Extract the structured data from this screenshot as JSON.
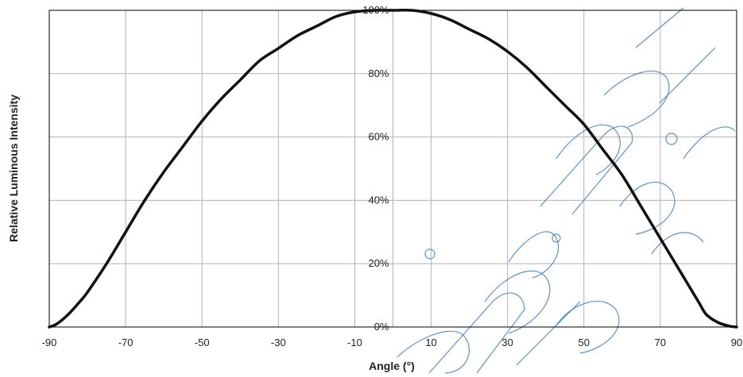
{
  "chart_data": {
    "type": "line",
    "title": "",
    "xlabel": "Angle (°)",
    "ylabel": "Relative Luminous Intensity",
    "xlim": [
      -90,
      90
    ],
    "ylim": [
      0,
      100
    ],
    "x_ticks": [
      -90,
      -70,
      -50,
      -30,
      -10,
      10,
      30,
      50,
      70,
      90
    ],
    "x_tick_labels": [
      "-90",
      "-70",
      "-50",
      "-30",
      "-10",
      "10",
      "30",
      "50",
      "70",
      "90"
    ],
    "y_ticks": [
      0,
      20,
      40,
      60,
      80,
      100
    ],
    "y_tick_labels": [
      "0%",
      "20%",
      "40%",
      "60%",
      "80%",
      "100%"
    ],
    "grid": true,
    "legend": "none",
    "series": [
      {
        "color": "#111111",
        "x": [
          -90,
          -88,
          -85,
          -82,
          -80,
          -75,
          -70,
          -65,
          -60,
          -55,
          -50,
          -45,
          -40,
          -35,
          -30,
          -25,
          -20,
          -15,
          -10,
          -5,
          0,
          5,
          10,
          15,
          20,
          25,
          30,
          35,
          40,
          45,
          50,
          55,
          60,
          65,
          70,
          75,
          80,
          82,
          85,
          88,
          90
        ],
        "y": [
          0,
          1,
          4,
          8,
          11,
          20,
          30,
          40,
          49,
          57,
          65,
          72,
          78,
          84,
          88,
          92,
          95,
          98,
          99.5,
          100,
          100,
          100,
          99,
          97,
          94,
          91,
          87,
          82,
          76,
          70,
          64,
          56,
          48,
          38,
          28,
          18,
          8,
          4,
          1.5,
          0.3,
          0
        ]
      }
    ]
  },
  "watermark": {
    "color": "#4a7fb0"
  }
}
